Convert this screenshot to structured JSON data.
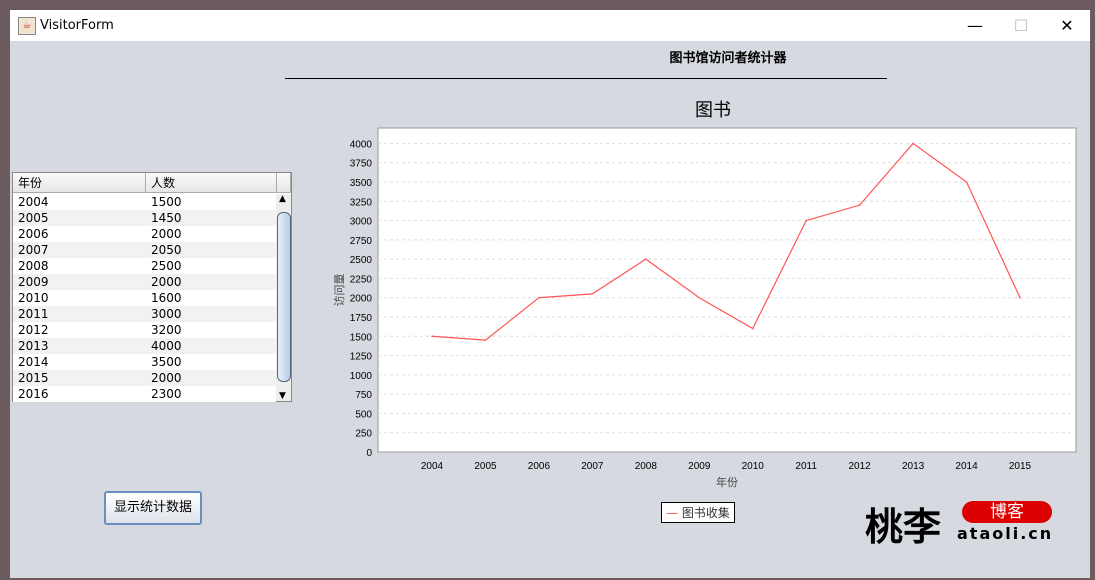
{
  "window": {
    "title": "VisitorForm",
    "minimize": "—",
    "maximize": "☐",
    "close": "✕"
  },
  "heading": "图书馆访问者统计器",
  "table": {
    "columns": [
      "年份",
      "人数"
    ],
    "rows": [
      [
        "2004",
        "1500"
      ],
      [
        "2005",
        "1450"
      ],
      [
        "2006",
        "2000"
      ],
      [
        "2007",
        "2050"
      ],
      [
        "2008",
        "2500"
      ],
      [
        "2009",
        "2000"
      ],
      [
        "2010",
        "1600"
      ],
      [
        "2011",
        "3000"
      ],
      [
        "2012",
        "3200"
      ],
      [
        "2013",
        "4000"
      ],
      [
        "2014",
        "3500"
      ],
      [
        "2015",
        "2000"
      ],
      [
        "2016",
        "2300"
      ]
    ]
  },
  "button_label": "显示统计数据",
  "logo": {
    "name": "桃李",
    "badge": "博客",
    "domain": "ataoli.cn"
  },
  "chart_data": {
    "type": "line",
    "title": "图书",
    "xlabel": "年份",
    "ylabel": "访问量",
    "categories": [
      "2004",
      "2005",
      "2006",
      "2007",
      "2008",
      "2009",
      "2010",
      "2011",
      "2012",
      "2013",
      "2014",
      "2015"
    ],
    "series": [
      {
        "name": "图书收集",
        "values": [
          1500,
          1450,
          2000,
          2050,
          2500,
          2000,
          1600,
          3000,
          3200,
          4000,
          3500,
          2000
        ],
        "color": "#ff5555"
      }
    ],
    "ylim": [
      0,
      4200
    ],
    "yticks": [
      0,
      250,
      500,
      750,
      1000,
      1250,
      1500,
      1750,
      2000,
      2250,
      2500,
      2750,
      3000,
      3250,
      3500,
      3750,
      4000
    ],
    "grid": true,
    "legend": "bottom"
  }
}
